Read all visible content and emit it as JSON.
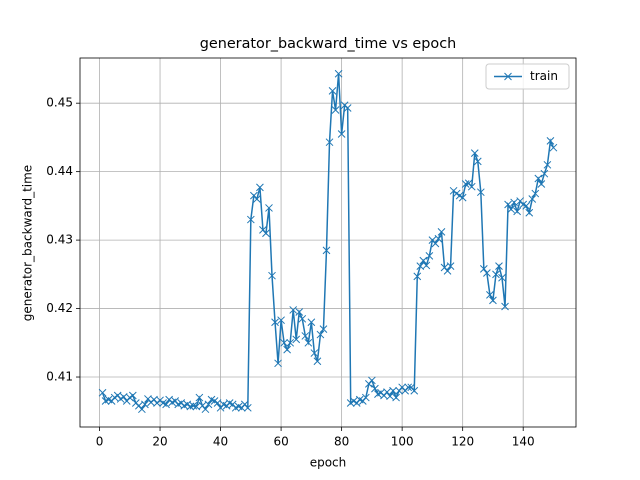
{
  "chart_data": {
    "type": "line",
    "title": "generator_backward_time vs epoch",
    "x_label": "epoch",
    "y_label": "generator_backward_time",
    "x": [
      1,
      2,
      3,
      4,
      5,
      6,
      7,
      8,
      9,
      10,
      11,
      12,
      13,
      14,
      15,
      16,
      17,
      18,
      19,
      20,
      21,
      22,
      23,
      24,
      25,
      26,
      27,
      28,
      29,
      30,
      31,
      32,
      33,
      34,
      35,
      36,
      37,
      38,
      39,
      40,
      41,
      42,
      43,
      44,
      45,
      46,
      47,
      48,
      49,
      50,
      51,
      52,
      53,
      54,
      55,
      56,
      57,
      58,
      59,
      60,
      61,
      62,
      63,
      64,
      65,
      66,
      67,
      68,
      69,
      70,
      71,
      72,
      73,
      74,
      75,
      76,
      77,
      78,
      79,
      80,
      81,
      82,
      83,
      84,
      85,
      86,
      87,
      88,
      89,
      90,
      91,
      92,
      93,
      94,
      95,
      96,
      97,
      98,
      99,
      100,
      101,
      102,
      103,
      104,
      105,
      106,
      107,
      108,
      109,
      110,
      111,
      112,
      113,
      114,
      115,
      116,
      117,
      118,
      119,
      120,
      121,
      122,
      123,
      124,
      125,
      126,
      127,
      128,
      129,
      130,
      131,
      132,
      133,
      134,
      135,
      136,
      137,
      138,
      139,
      140,
      141,
      142,
      143,
      144,
      145,
      146,
      147,
      148,
      149,
      150
    ],
    "series": [
      {
        "name": "train",
        "color": "#1f77b4",
        "marker": "x",
        "values": [
          0.4077,
          0.4065,
          0.4067,
          0.4065,
          0.407,
          0.4073,
          0.4068,
          0.4071,
          0.4065,
          0.407,
          0.4073,
          0.4062,
          0.4058,
          0.4053,
          0.406,
          0.4068,
          0.4063,
          0.4067,
          0.4062,
          0.4066,
          0.4062,
          0.406,
          0.4067,
          0.4063,
          0.4065,
          0.406,
          0.4062,
          0.4058,
          0.406,
          0.4057,
          0.4058,
          0.4057,
          0.407,
          0.4058,
          0.4053,
          0.406,
          0.4067,
          0.4065,
          0.4062,
          0.4055,
          0.406,
          0.4058,
          0.4062,
          0.406,
          0.4055,
          0.4057,
          0.4055,
          0.406,
          0.4055,
          0.433,
          0.4365,
          0.436,
          0.4377,
          0.4315,
          0.431,
          0.4347,
          0.4248,
          0.418,
          0.412,
          0.4183,
          0.415,
          0.414,
          0.415,
          0.4198,
          0.4155,
          0.4195,
          0.4185,
          0.416,
          0.415,
          0.418,
          0.4135,
          0.4123,
          0.4162,
          0.417,
          0.4285,
          0.4443,
          0.4518,
          0.449,
          0.4543,
          0.4455,
          0.4497,
          0.4493,
          0.4062,
          0.4065,
          0.4062,
          0.4067,
          0.4065,
          0.407,
          0.409,
          0.4095,
          0.4083,
          0.4075,
          0.4077,
          0.4073,
          0.4078,
          0.4072,
          0.408,
          0.407,
          0.408,
          0.4085,
          0.408,
          0.4085,
          0.4085,
          0.408,
          0.4247,
          0.4262,
          0.427,
          0.4263,
          0.4277,
          0.43,
          0.4295,
          0.4302,
          0.4312,
          0.426,
          0.4255,
          0.4262,
          0.4372,
          0.4368,
          0.4365,
          0.4362,
          0.4382,
          0.4383,
          0.4378,
          0.4427,
          0.4415,
          0.437,
          0.4258,
          0.4252,
          0.422,
          0.4212,
          0.425,
          0.4262,
          0.4245,
          0.4203,
          0.4352,
          0.4345,
          0.4355,
          0.4342,
          0.4357,
          0.4352,
          0.435,
          0.434,
          0.436,
          0.4368,
          0.439,
          0.4382,
          0.4397,
          0.441,
          0.4445,
          0.4435
        ]
      }
    ],
    "xlim": [
      -6.45,
      157.45
    ],
    "ylim": [
      0.4027,
      0.4566
    ],
    "xticks": [
      0,
      20,
      40,
      60,
      80,
      100,
      120,
      140
    ],
    "yticks": [
      0.41,
      0.42,
      0.43,
      0.44,
      0.45
    ],
    "grid": true,
    "legend_position": "upper right"
  }
}
